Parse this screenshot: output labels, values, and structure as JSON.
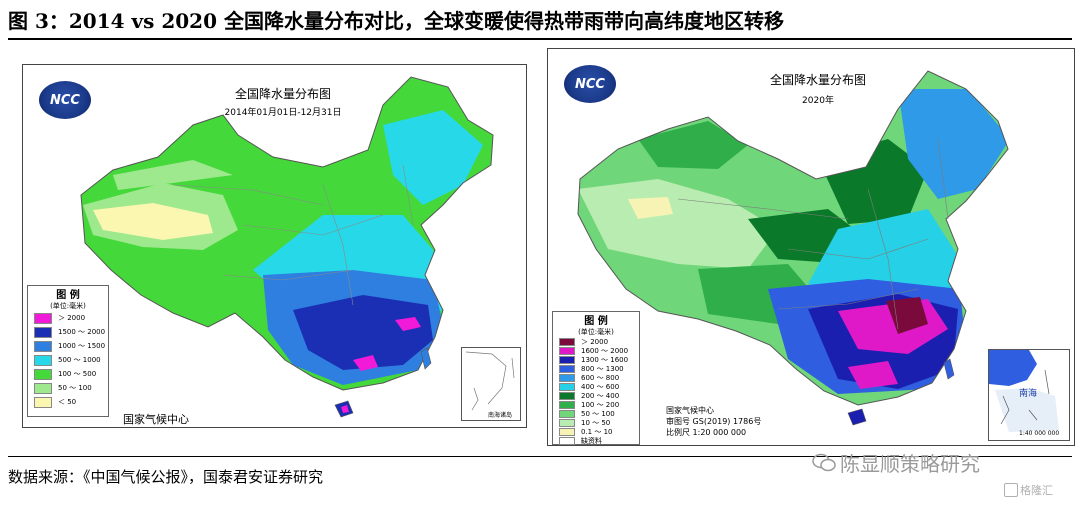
{
  "figure": {
    "title": "图 3：2014 vs 2020 全国降水量分布对比，全球变暖使得热带雨带向高纬度地区转移",
    "source": "数据来源：《中国气候公报》，国泰君安证券研究"
  },
  "left_map": {
    "logo_text": "NCC",
    "title": "全国降水量分布图",
    "subtitle": "2014年01月01日-12月31日",
    "center_name": "国家气候中心",
    "inset_label": "南海诸岛",
    "legend": {
      "title": "图 例",
      "unit": "(单位:毫米)",
      "items": [
        {
          "label": "＞ 2000",
          "color": "#f01ad8"
        },
        {
          "label": "1500 ～ 2000",
          "color": "#1b2fb5"
        },
        {
          "label": "1000 ～ 1500",
          "color": "#2e7fe0"
        },
        {
          "label": "500 ～ 1000",
          "color": "#27d8e8"
        },
        {
          "label": "100 ～ 500",
          "color": "#44d83a"
        },
        {
          "label": "50 ～ 100",
          "color": "#9ee88e"
        },
        {
          "label": "＜ 50",
          "color": "#fbf7b0"
        }
      ]
    }
  },
  "right_map": {
    "logo_text": "NCC",
    "title": "全国降水量分布图",
    "subtitle": "2020年",
    "center_name": "国家气候中心",
    "approval_no": "审图号 GS(2019) 1786号",
    "scale": "比例尺 1:20 000 000",
    "inset_label": "南海",
    "inset_scale": "1:40 000 000",
    "legend": {
      "title": "图 例",
      "unit": "(单位:毫米)",
      "items": [
        {
          "label": "＞ 2000",
          "color": "#7a0a3c"
        },
        {
          "label": "1600 ～ 2000",
          "color": "#e019c8"
        },
        {
          "label": "1300 ～ 1600",
          "color": "#1a1fb0"
        },
        {
          "label": "800 ～ 1300",
          "color": "#2f5fe0"
        },
        {
          "label": "600 ～ 800",
          "color": "#2e9ae8"
        },
        {
          "label": "400 ～ 600",
          "color": "#26d0e6"
        },
        {
          "label": "200 ～ 400",
          "color": "#0a7a2a"
        },
        {
          "label": "100 ～ 200",
          "color": "#2fae4a"
        },
        {
          "label": "50 ～ 100",
          "color": "#6fd67a"
        },
        {
          "label": "10 ～ 50",
          "color": "#b9ecb0"
        },
        {
          "label": "0.1 ～ 10",
          "color": "#f6f3b4"
        },
        {
          "label": "缺资料",
          "color": "#ffffff"
        }
      ]
    }
  },
  "watermark": {
    "text": "陈显顺策略研究",
    "site": "格隆汇"
  }
}
